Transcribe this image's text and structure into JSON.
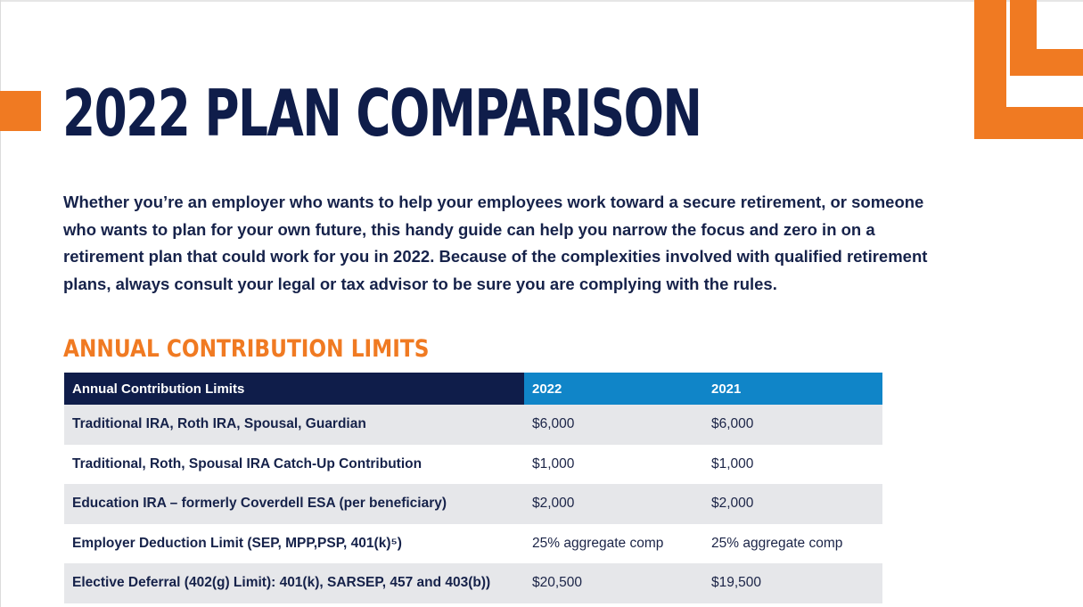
{
  "title": "2022 PLAN COMPARISON",
  "intro": "Whether you’re an employer who wants to help your employees work toward a secure retirement, or someone who wants to plan for your own future, this handy guide can help you narrow the focus and zero in on a retirement plan that could work for you in 2022. Because of the complexities involved with qualified retirement plans, always consult your legal or tax advisor to be sure you are complying with the rules.",
  "section_heading": "ANNUAL CONTRIBUTION LIMITS",
  "colors": {
    "navy": "#0f1d4a",
    "orange": "#f07a22",
    "blue": "#1085c8",
    "row_shade": "#e6e7ea"
  },
  "table": {
    "headers": [
      "Annual Contribution Limits",
      "2022",
      "2021"
    ],
    "rows": [
      {
        "label": "Traditional IRA, Roth IRA, Spousal, Guardian",
        "y2022": "$6,000",
        "y2021": "$6,000"
      },
      {
        "label": "Traditional, Roth, Spousal IRA Catch-Up Contribution",
        "y2022": "$1,000",
        "y2021": "$1,000"
      },
      {
        "label": "Education IRA – formerly Coverdell ESA (per beneficiary)",
        "y2022": "$2,000",
        "y2021": "$2,000"
      },
      {
        "label": "Employer Deduction Limit (SEP, MPP,PSP, 401(k)⁵)",
        "y2022": "25% aggregate comp",
        "y2021": "25% aggregate comp"
      },
      {
        "label": "Elective Deferral (402(g) Limit): 401(k), SARSEP, 457 and 403(b))",
        "y2022": "$20,500",
        "y2021": "$19,500"
      }
    ]
  }
}
